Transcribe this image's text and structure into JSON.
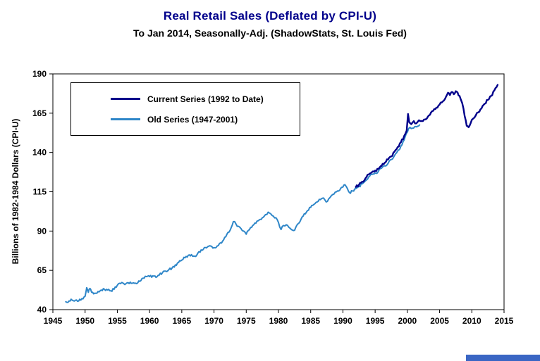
{
  "page": {
    "title": "Real Retail Sales (Deflated by CPI-U)",
    "subtitle": "To Jan 2014, Seasonally-Adj. (ShadowStats, St. Louis Fed)"
  },
  "chart_data": {
    "type": "line",
    "title": "Real Retail Sales (Deflated by CPI-U)",
    "subtitle": "To Jan 2014, Seasonally-Adj. (ShadowStats, St. Louis Fed)",
    "xlabel": "",
    "ylabel": "Billions of 1982-1984 Dollars (CPI-U)",
    "xlim": [
      1945,
      2015
    ],
    "ylim": [
      40,
      190
    ],
    "x_ticks": [
      1945,
      1950,
      1955,
      1960,
      1965,
      1970,
      1975,
      1980,
      1985,
      1990,
      1995,
      2000,
      2005,
      2010,
      2015
    ],
    "y_ticks": [
      40,
      65,
      90,
      115,
      140,
      165,
      190
    ],
    "grid": false,
    "legend_position": "upper-left",
    "series": [
      {
        "name": "Current Series (1992 to Date)",
        "color": "#00008B",
        "points": [
          [
            1992,
            118
          ],
          [
            1992.5,
            119.5
          ],
          [
            1993,
            121.5
          ],
          [
            1993.5,
            123.5
          ],
          [
            1994,
            126
          ],
          [
            1994.5,
            127.5
          ],
          [
            1995,
            128.5
          ],
          [
            1995.5,
            129.5
          ],
          [
            1996,
            131.5
          ],
          [
            1996.5,
            133.5
          ],
          [
            1997,
            135.5
          ],
          [
            1997.5,
            137.5
          ],
          [
            1998,
            140.5
          ],
          [
            1998.5,
            143.5
          ],
          [
            1999,
            146.5
          ],
          [
            1999.5,
            150.5
          ],
          [
            1999.9,
            154
          ],
          [
            2000.1,
            164.5
          ],
          [
            2000.3,
            159
          ],
          [
            2000.6,
            158
          ],
          [
            2001,
            160
          ],
          [
            2001.4,
            158.5
          ],
          [
            2001.8,
            160.5
          ],
          [
            2002.2,
            160
          ],
          [
            2002.6,
            161
          ],
          [
            2003,
            161.5
          ],
          [
            2003.5,
            164
          ],
          [
            2004,
            166.5
          ],
          [
            2004.5,
            168.5
          ],
          [
            2005,
            170.5
          ],
          [
            2005.5,
            172.5
          ],
          [
            2006,
            175.5
          ],
          [
            2006.3,
            178
          ],
          [
            2006.6,
            176.5
          ],
          [
            2006.9,
            178.5
          ],
          [
            2007.2,
            177
          ],
          [
            2007.5,
            179
          ],
          [
            2007.8,
            178
          ],
          [
            2008.1,
            176
          ],
          [
            2008.5,
            171.5
          ],
          [
            2008.9,
            163
          ],
          [
            2009.2,
            157
          ],
          [
            2009.5,
            156
          ],
          [
            2009.8,
            158.5
          ],
          [
            2010.2,
            161.5
          ],
          [
            2010.6,
            163.5
          ],
          [
            2011,
            165.5
          ],
          [
            2011.5,
            168
          ],
          [
            2012,
            171
          ],
          [
            2012.5,
            173.5
          ],
          [
            2013,
            176
          ],
          [
            2013.5,
            179.5
          ],
          [
            2014,
            183
          ]
        ]
      },
      {
        "name": "Old Series (1947-2001)",
        "color": "#2E86C8",
        "points": [
          [
            1947,
            45
          ],
          [
            1947.5,
            45.5
          ],
          [
            1948,
            46
          ],
          [
            1948.5,
            46
          ],
          [
            1949,
            45.5
          ],
          [
            1949.5,
            47
          ],
          [
            1950,
            48.5
          ],
          [
            1950.25,
            54
          ],
          [
            1950.5,
            51
          ],
          [
            1950.75,
            53.5
          ],
          [
            1951,
            51
          ],
          [
            1951.5,
            50.5
          ],
          [
            1952,
            51.5
          ],
          [
            1952.5,
            52.5
          ],
          [
            1953,
            53
          ],
          [
            1953.5,
            52.5
          ],
          [
            1954,
            52
          ],
          [
            1954.5,
            53
          ],
          [
            1955,
            55.5
          ],
          [
            1955.5,
            56.5
          ],
          [
            1956,
            56.5
          ],
          [
            1956.5,
            57
          ],
          [
            1957,
            57.5
          ],
          [
            1957.5,
            57
          ],
          [
            1958,
            56.5
          ],
          [
            1958.5,
            58
          ],
          [
            1959,
            60
          ],
          [
            1959.5,
            61
          ],
          [
            1960,
            61
          ],
          [
            1960.5,
            61.5
          ],
          [
            1961,
            60.5
          ],
          [
            1961.5,
            62
          ],
          [
            1962,
            63.5
          ],
          [
            1962.5,
            64.5
          ],
          [
            1963,
            65.5
          ],
          [
            1963.5,
            66.5
          ],
          [
            1964,
            68.5
          ],
          [
            1964.5,
            70
          ],
          [
            1965,
            71.5
          ],
          [
            1965.5,
            73
          ],
          [
            1966,
            74.5
          ],
          [
            1966.5,
            75
          ],
          [
            1967,
            74
          ],
          [
            1967.5,
            76
          ],
          [
            1968,
            78
          ],
          [
            1968.5,
            79.5
          ],
          [
            1969,
            80
          ],
          [
            1969.5,
            80.5
          ],
          [
            1970,
            79.5
          ],
          [
            1970.5,
            80.5
          ],
          [
            1971,
            82.5
          ],
          [
            1971.5,
            84.5
          ],
          [
            1972,
            88
          ],
          [
            1972.5,
            90.5
          ],
          [
            1973,
            96
          ],
          [
            1973.4,
            94.5
          ],
          [
            1973.8,
            93
          ],
          [
            1974.2,
            91.5
          ],
          [
            1974.6,
            90
          ],
          [
            1975,
            88
          ],
          [
            1975.5,
            91
          ],
          [
            1976,
            93.5
          ],
          [
            1976.5,
            95
          ],
          [
            1977,
            97
          ],
          [
            1977.5,
            98.5
          ],
          [
            1978,
            100.5
          ],
          [
            1978.4,
            102
          ],
          [
            1978.8,
            101
          ],
          [
            1979.2,
            99.5
          ],
          [
            1979.6,
            98.5
          ],
          [
            1980,
            95.5
          ],
          [
            1980.4,
            91
          ],
          [
            1980.8,
            93.5
          ],
          [
            1981.2,
            94
          ],
          [
            1981.6,
            92.5
          ],
          [
            1982,
            91
          ],
          [
            1982.5,
            90.5
          ],
          [
            1983,
            94.5
          ],
          [
            1983.5,
            97.5
          ],
          [
            1984,
            101
          ],
          [
            1984.5,
            103
          ],
          [
            1985,
            105
          ],
          [
            1985.5,
            107
          ],
          [
            1986,
            108.5
          ],
          [
            1986.5,
            110
          ],
          [
            1987,
            111
          ],
          [
            1987.4,
            108.5
          ],
          [
            1987.8,
            110.5
          ],
          [
            1988.2,
            112.5
          ],
          [
            1988.6,
            113.5
          ],
          [
            1989,
            115
          ],
          [
            1989.5,
            116
          ],
          [
            1990,
            118
          ],
          [
            1990.3,
            119.5
          ],
          [
            1990.7,
            117
          ],
          [
            1991,
            114.5
          ],
          [
            1991.5,
            115.5
          ],
          [
            1992,
            117
          ],
          [
            1992.5,
            118.5
          ],
          [
            1993,
            120
          ],
          [
            1993.5,
            122
          ],
          [
            1994,
            124.5
          ],
          [
            1994.5,
            126
          ],
          [
            1995,
            127
          ],
          [
            1995.5,
            128
          ],
          [
            1996,
            130
          ],
          [
            1996.5,
            131.5
          ],
          [
            1997,
            133
          ],
          [
            1997.5,
            135.5
          ],
          [
            1998,
            138
          ],
          [
            1998.5,
            141
          ],
          [
            1999,
            144
          ],
          [
            1999.5,
            148
          ],
          [
            2000,
            153
          ],
          [
            2000.4,
            156
          ],
          [
            2000.8,
            155.5
          ],
          [
            2001.3,
            156.5
          ],
          [
            2001.9,
            157.5
          ]
        ]
      }
    ]
  },
  "decor": {
    "footer_bar_color": "#3A66C4"
  }
}
